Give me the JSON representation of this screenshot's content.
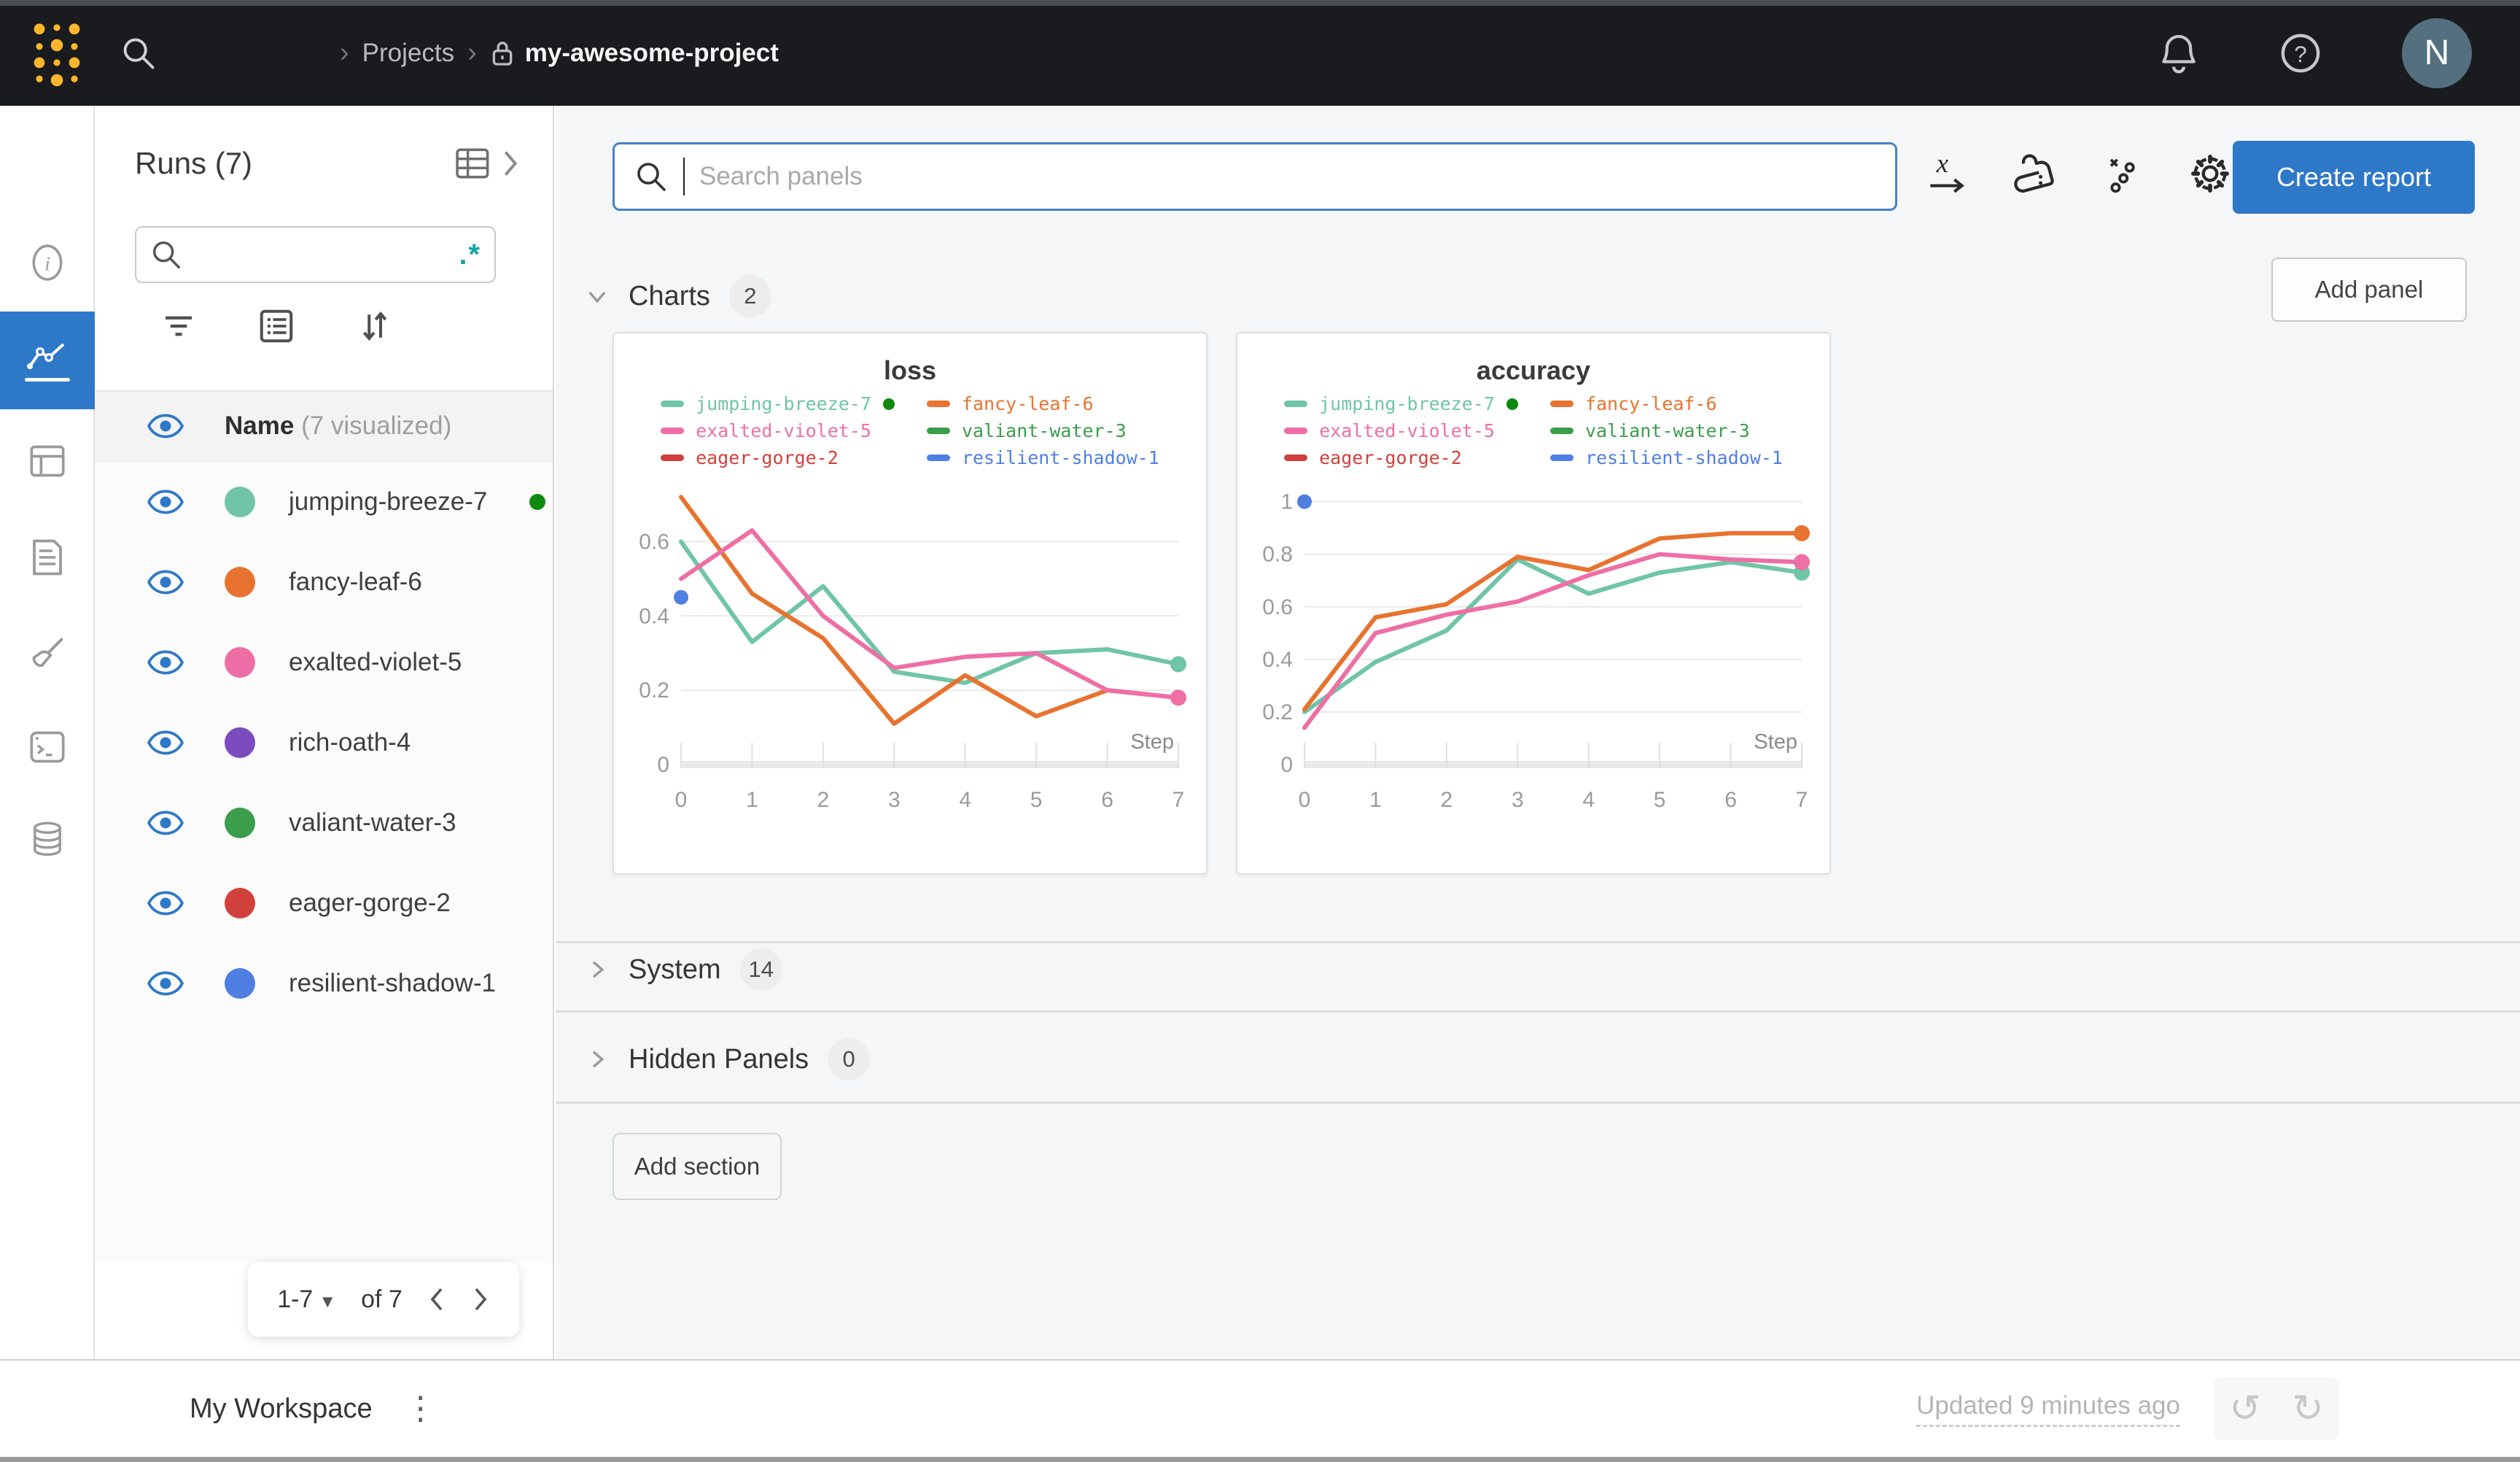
{
  "topbar": {
    "breadcrumb": {
      "level1": "Projects",
      "project": "my-awesome-project"
    },
    "avatar_initial": "N",
    "icons": [
      "wandb-logo",
      "search-icon",
      "lock-icon",
      "bell-icon",
      "help-icon"
    ]
  },
  "nav_rail": {
    "icons": [
      "info-icon",
      "line-chart-icon",
      "table-icon",
      "document-icon",
      "brush-icon",
      "terminal-icon",
      "database-icon"
    ],
    "active_index": 1
  },
  "runs_panel": {
    "title": "Runs (7)",
    "search_placeholder": "",
    "regex_toggle": ".*",
    "header": {
      "name": "Name",
      "visualized": "(7 visualized)"
    },
    "runs": [
      {
        "name": "jumping-breeze-7",
        "color": "#6fc5a6",
        "live": true
      },
      {
        "name": "fancy-leaf-6",
        "color": "#e8732f",
        "live": false
      },
      {
        "name": "exalted-violet-5",
        "color": "#ee6fa5",
        "live": false
      },
      {
        "name": "rich-oath-4",
        "color": "#7d4bc0",
        "live": false
      },
      {
        "name": "valiant-water-3",
        "color": "#3a9e4c",
        "live": false
      },
      {
        "name": "eager-gorge-2",
        "color": "#d2403c",
        "live": false
      },
      {
        "name": "resilient-shadow-1",
        "color": "#4f7fe0",
        "live": false
      }
    ],
    "pagination": {
      "range": "1-7",
      "of": "of 7"
    }
  },
  "main": {
    "search_placeholder": "Search panels",
    "control_icons": [
      "x-axis-icon",
      "smoothing-iron-icon",
      "outliers-icon",
      "settings-gear-icon"
    ],
    "create_report_label": "Create report",
    "add_panel_label": "Add panel",
    "add_section_label": "Add section",
    "sections": {
      "charts": {
        "label": "Charts",
        "count": "2"
      },
      "system": {
        "label": "System",
        "count": "14"
      },
      "hidden": {
        "label": "Hidden Panels",
        "count": "0"
      }
    }
  },
  "footer": {
    "workspace_label": "My Workspace",
    "updated_label": "Updated 9 minutes ago",
    "icons": [
      "kebab-icon",
      "undo-icon",
      "redo-icon"
    ],
    "undo_glyph": "↺",
    "redo_glyph": "↻"
  },
  "colors": {
    "accent_blue": "#2e78c8",
    "topbar_bg": "#191b1f",
    "logo_gold": "#fcb62c",
    "regex_teal": "#13a3a3",
    "live_green": "#0e8a0e"
  },
  "chart_data": [
    {
      "type": "line",
      "title": "loss",
      "xlabel": "Step",
      "x": [
        0,
        1,
        2,
        3,
        4,
        5,
        6,
        7
      ],
      "xticks": [
        0,
        1,
        2,
        3,
        4,
        5,
        6,
        7
      ],
      "yticks": [
        0,
        0.2,
        0.4,
        0.6
      ],
      "ylim": [
        0,
        0.75
      ],
      "grid": true,
      "legend_position": "top",
      "legend": [
        {
          "name": "jumping-breeze-7",
          "color": "#6fc5a6",
          "live": true
        },
        {
          "name": "fancy-leaf-6",
          "color": "#e8732f",
          "live": false
        },
        {
          "name": "exalted-violet-5",
          "color": "#ee6fa5",
          "live": false
        },
        {
          "name": "valiant-water-3",
          "color": "#3a9e4c",
          "live": false
        },
        {
          "name": "eager-gorge-2",
          "color": "#d2403c",
          "live": false
        },
        {
          "name": "resilient-shadow-1",
          "color": "#4f7fe0",
          "live": false
        }
      ],
      "series": [
        {
          "name": "jumping-breeze-7",
          "color": "#6fc5a6",
          "values": [
            0.6,
            0.33,
            0.48,
            0.25,
            0.22,
            0.3,
            0.31,
            0.27
          ],
          "end_dot": true
        },
        {
          "name": "fancy-leaf-6",
          "color": "#e8732f",
          "values": [
            0.72,
            0.46,
            0.34,
            0.11,
            0.24,
            0.13,
            0.2,
            0.18
          ],
          "end_dot": false
        },
        {
          "name": "exalted-violet-5",
          "color": "#ee6fa5",
          "values": [
            0.5,
            0.63,
            0.4,
            0.26,
            0.29,
            0.3,
            0.2,
            0.18
          ],
          "end_dot": true
        },
        {
          "name": "resilient-shadow-1",
          "color": "#4f7fe0",
          "values": [
            0.45
          ],
          "point_only": true
        }
      ]
    },
    {
      "type": "line",
      "title": "accuracy",
      "xlabel": "Step",
      "x": [
        0,
        1,
        2,
        3,
        4,
        5,
        6,
        7
      ],
      "xticks": [
        0,
        1,
        2,
        3,
        4,
        5,
        6,
        7
      ],
      "yticks": [
        0,
        0.2,
        0.4,
        0.6,
        0.8,
        1
      ],
      "ylim": [
        0,
        1.06
      ],
      "grid": true,
      "legend_position": "top",
      "legend": [
        {
          "name": "jumping-breeze-7",
          "color": "#6fc5a6",
          "live": true
        },
        {
          "name": "fancy-leaf-6",
          "color": "#e8732f",
          "live": false
        },
        {
          "name": "exalted-violet-5",
          "color": "#ee6fa5",
          "live": false
        },
        {
          "name": "valiant-water-3",
          "color": "#3a9e4c",
          "live": false
        },
        {
          "name": "eager-gorge-2",
          "color": "#d2403c",
          "live": false
        },
        {
          "name": "resilient-shadow-1",
          "color": "#4f7fe0",
          "live": false
        }
      ],
      "series": [
        {
          "name": "jumping-breeze-7",
          "color": "#6fc5a6",
          "values": [
            0.2,
            0.39,
            0.51,
            0.78,
            0.65,
            0.73,
            0.77,
            0.73
          ],
          "end_dot": true
        },
        {
          "name": "fancy-leaf-6",
          "color": "#e8732f",
          "values": [
            0.21,
            0.56,
            0.61,
            0.79,
            0.74,
            0.86,
            0.88,
            0.88
          ],
          "end_dot": true
        },
        {
          "name": "exalted-violet-5",
          "color": "#ee6fa5",
          "values": [
            0.14,
            0.5,
            0.57,
            0.62,
            0.72,
            0.8,
            0.78,
            0.77
          ],
          "end_dot": true
        },
        {
          "name": "resilient-shadow-1",
          "color": "#4f7fe0",
          "values": [
            1.0
          ],
          "point_only": true
        }
      ]
    }
  ]
}
